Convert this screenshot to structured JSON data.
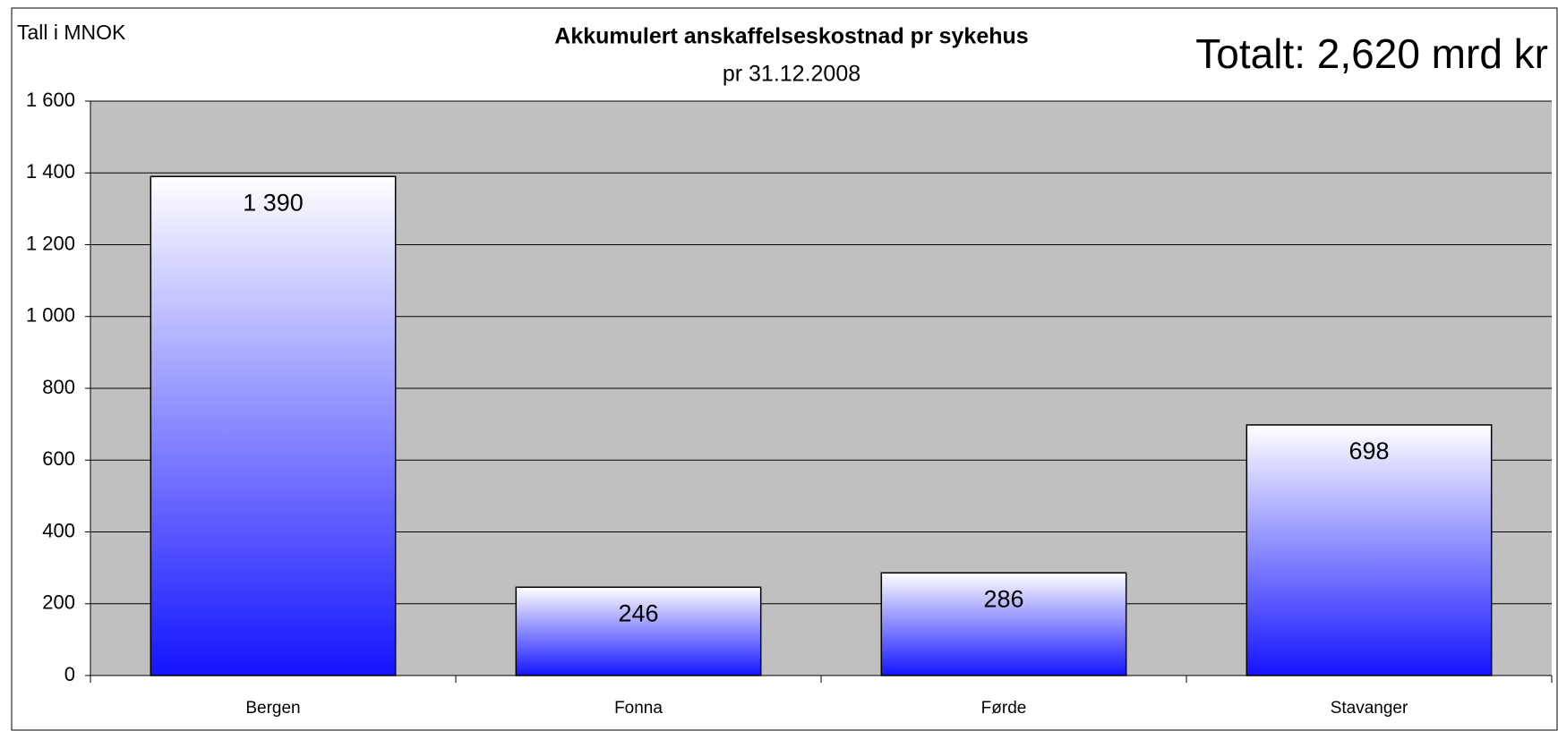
{
  "chart_data": {
    "type": "bar",
    "title": "Akkumulert anskaffelseskostnad pr sykehus",
    "subtitle": "pr 31.12.2008",
    "y_axis_label": "Tall i MNOK",
    "annotation": "Totalt: 2,620 mrd kr",
    "categories": [
      "Bergen",
      "Fonna",
      "Førde",
      "Stavanger"
    ],
    "values": [
      1390,
      246,
      286,
      698
    ],
    "value_labels": [
      "1 390",
      "246",
      "286",
      "698"
    ],
    "color": "#1414ff",
    "plot_background": "#c0c0c0",
    "ylim": [
      0,
      1600
    ],
    "yticks": [
      0,
      200,
      400,
      600,
      800,
      {
        "value": 1000,
        "label": "1 000"
      },
      {
        "value": 1200,
        "label": "1 200"
      },
      {
        "value": 1400,
        "label": "1 400"
      },
      {
        "value": 1600,
        "label": "1 600"
      }
    ],
    "grid": true
  }
}
